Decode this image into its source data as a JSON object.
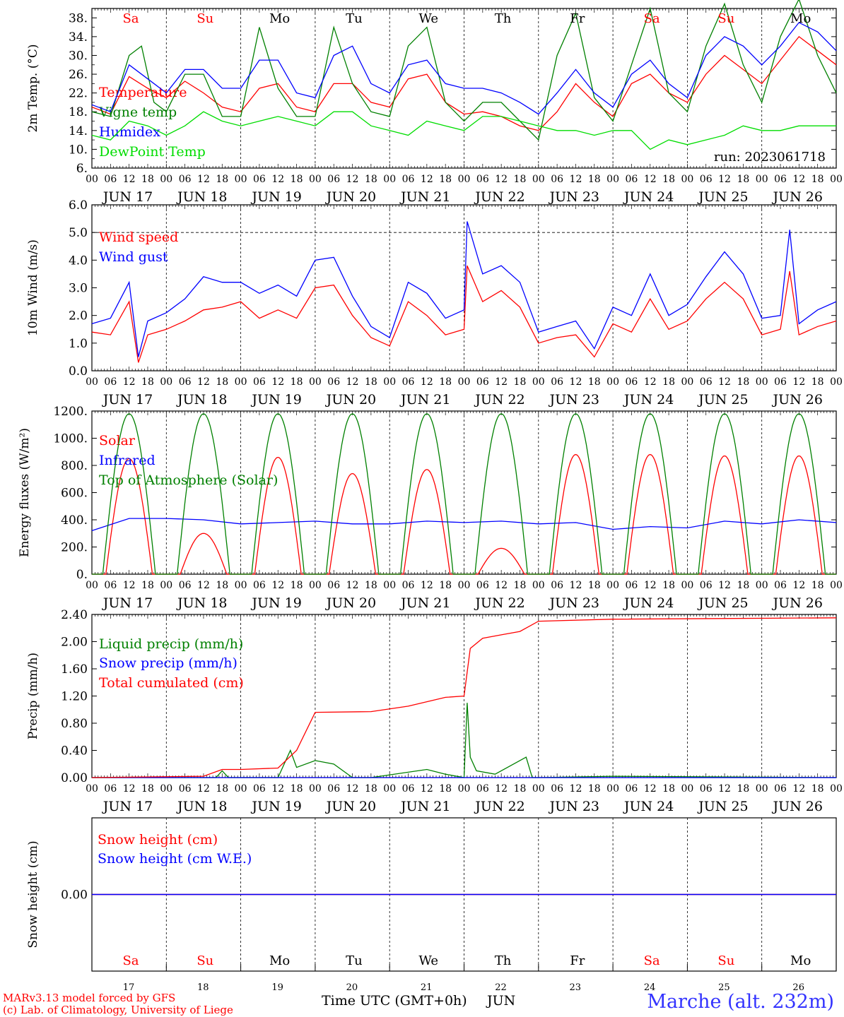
{
  "days": [
    {
      "abbr": "Sa",
      "weekend": true,
      "label": "JUN 17",
      "num": "17"
    },
    {
      "abbr": "Su",
      "weekend": true,
      "label": "JUN 18",
      "num": "18"
    },
    {
      "abbr": "Mo",
      "weekend": false,
      "label": "JUN 19",
      "num": "19"
    },
    {
      "abbr": "Tu",
      "weekend": false,
      "label": "JUN 20",
      "num": "20"
    },
    {
      "abbr": "We",
      "weekend": false,
      "label": "JUN 21",
      "num": "21"
    },
    {
      "abbr": "Th",
      "weekend": false,
      "label": "JUN 22",
      "num": "22"
    },
    {
      "abbr": "Fr",
      "weekend": false,
      "label": "JUN 23",
      "num": "23"
    },
    {
      "abbr": "Sa",
      "weekend": true,
      "label": "JUN 24",
      "num": "24"
    },
    {
      "abbr": "Su",
      "weekend": true,
      "label": "JUN 25",
      "num": "25"
    },
    {
      "abbr": "Mo",
      "weekend": false,
      "label": "JUN 26",
      "num": "26"
    }
  ],
  "hour_ticks": [
    "00",
    "06",
    "12",
    "18"
  ],
  "colors": {
    "red": "#ff0000",
    "green": "#008000",
    "blue": "#0000ff",
    "lightgreen": "#00dd00",
    "purple": "#800080",
    "title": "#3333ff"
  },
  "chart_data": [
    {
      "type": "line",
      "ylabel": "2m Temp. (°C)",
      "ylim": [
        6,
        40
      ],
      "yticks": [
        "6.",
        "10.",
        "14.",
        "18.",
        "22.",
        "26.",
        "30.",
        "34.",
        "38."
      ],
      "annotation": "run: 2023061718",
      "series": [
        {
          "name": "Temperature",
          "color": "red",
          "x": [
            0,
            6,
            12,
            18,
            24,
            30,
            36,
            42,
            48,
            54,
            60,
            66,
            72,
            78,
            84,
            90,
            96,
            102,
            108,
            114,
            120,
            126,
            132,
            138,
            144,
            150,
            156,
            162,
            168,
            174,
            180,
            186,
            192,
            198,
            204,
            210,
            216,
            222,
            228,
            234,
            240
          ],
          "values": [
            19,
            17.5,
            25.5,
            23,
            21,
            24.5,
            22,
            19,
            18,
            23,
            24,
            19,
            18,
            24,
            24,
            20,
            19,
            25,
            26,
            20,
            17.5,
            18,
            17,
            15,
            14,
            18,
            24,
            20,
            17,
            24,
            26,
            22,
            20,
            26,
            30,
            27,
            24,
            29,
            34,
            31,
            28
          ]
        },
        {
          "name": "Vigne temp",
          "color": "green",
          "x": [
            0,
            6,
            12,
            16,
            20,
            24,
            30,
            36,
            42,
            48,
            54,
            60,
            66,
            72,
            78,
            84,
            90,
            96,
            102,
            108,
            114,
            120,
            126,
            132,
            138,
            144,
            150,
            156,
            162,
            168,
            174,
            180,
            186,
            192,
            198,
            204,
            210,
            216,
            222,
            228,
            234,
            240
          ],
          "values": [
            18,
            17,
            30,
            32,
            20,
            18,
            26,
            26,
            17,
            17,
            36,
            23,
            17,
            17,
            36,
            24,
            18,
            17,
            32,
            36,
            20,
            16,
            20,
            20,
            16,
            12,
            30,
            39,
            21,
            16,
            28,
            40,
            22,
            18,
            32,
            41,
            28,
            20,
            34,
            42,
            30,
            22
          ]
        },
        {
          "name": "Humidex",
          "color": "blue",
          "x": [
            0,
            6,
            12,
            18,
            24,
            30,
            36,
            42,
            48,
            54,
            60,
            66,
            72,
            78,
            84,
            90,
            96,
            102,
            108,
            114,
            120,
            126,
            132,
            138,
            144,
            150,
            156,
            162,
            168,
            174,
            180,
            186,
            192,
            198,
            204,
            210,
            216,
            222,
            228,
            234,
            240
          ],
          "values": [
            19.5,
            18,
            28,
            25,
            22,
            27,
            27,
            23,
            23,
            29,
            29,
            22,
            21,
            30,
            32,
            24,
            22,
            28,
            29,
            24,
            23,
            23,
            22,
            20,
            17.5,
            22,
            27,
            22,
            19,
            26,
            29,
            24,
            21,
            30,
            34,
            32,
            28,
            32,
            37,
            35,
            31
          ]
        },
        {
          "name": "DewPoint Temp",
          "color": "lightgreen",
          "x": [
            0,
            6,
            12,
            18,
            24,
            30,
            36,
            42,
            48,
            54,
            60,
            66,
            72,
            78,
            84,
            90,
            96,
            102,
            108,
            114,
            120,
            126,
            132,
            138,
            144,
            150,
            156,
            162,
            168,
            174,
            180,
            186,
            192,
            198,
            204,
            210,
            216,
            222,
            228,
            234,
            240
          ],
          "values": [
            13,
            12,
            16,
            15,
            13,
            15,
            18,
            16,
            15,
            16,
            17,
            16,
            15,
            18,
            18,
            15,
            14,
            13,
            16,
            15,
            14,
            17,
            17,
            16,
            15,
            14,
            14,
            13,
            14,
            14,
            10,
            12,
            11,
            12,
            13,
            15,
            14,
            14,
            15,
            15,
            15
          ]
        }
      ]
    },
    {
      "type": "line",
      "ylabel": "10m Wind (m/s)",
      "ylim": [
        0,
        6
      ],
      "yticks": [
        "0.0",
        "1.0",
        "2.0",
        "3.0",
        "4.0",
        "5.0",
        "6.0"
      ],
      "reference_line": 5.0,
      "series": [
        {
          "name": "Wind speed",
          "color": "red",
          "x": [
            0,
            6,
            12,
            15,
            18,
            24,
            30,
            36,
            42,
            48,
            54,
            60,
            66,
            72,
            78,
            84,
            90,
            96,
            102,
            108,
            114,
            120,
            121,
            126,
            132,
            138,
            144,
            150,
            156,
            162,
            168,
            174,
            180,
            186,
            192,
            198,
            204,
            210,
            216,
            222,
            225,
            228,
            234,
            240
          ],
          "values": [
            1.4,
            1.3,
            2.5,
            0.3,
            1.3,
            1.5,
            1.8,
            2.2,
            2.3,
            2.5,
            1.9,
            2.2,
            1.9,
            3.0,
            3.1,
            2.0,
            1.2,
            0.9,
            2.5,
            2.0,
            1.3,
            1.5,
            3.8,
            2.5,
            2.9,
            2.3,
            1.0,
            1.2,
            1.3,
            0.5,
            1.7,
            1.4,
            2.6,
            1.5,
            1.8,
            2.6,
            3.2,
            2.6,
            1.3,
            1.5,
            3.6,
            1.3,
            1.6,
            1.8
          ]
        },
        {
          "name": "Wind gust",
          "color": "blue",
          "x": [
            0,
            6,
            12,
            15,
            18,
            24,
            30,
            36,
            42,
            48,
            54,
            60,
            66,
            72,
            78,
            84,
            90,
            96,
            102,
            108,
            114,
            120,
            121,
            126,
            132,
            138,
            144,
            150,
            156,
            162,
            168,
            174,
            180,
            186,
            192,
            198,
            204,
            210,
            216,
            222,
            225,
            228,
            234,
            240
          ],
          "values": [
            1.7,
            1.9,
            3.2,
            0.5,
            1.8,
            2.1,
            2.6,
            3.4,
            3.2,
            3.2,
            2.8,
            3.1,
            2.7,
            4.0,
            4.1,
            2.7,
            1.6,
            1.2,
            3.2,
            2.8,
            1.9,
            2.2,
            5.4,
            3.5,
            3.8,
            3.2,
            1.4,
            1.6,
            1.8,
            0.8,
            2.3,
            2.0,
            3.5,
            2.0,
            2.4,
            3.4,
            4.3,
            3.5,
            1.9,
            2.0,
            5.1,
            1.7,
            2.2,
            2.5
          ]
        }
      ]
    },
    {
      "type": "line",
      "ylabel": "Energy fluxes (W/m²)",
      "ylim": [
        0,
        1200
      ],
      "yticks": [
        "0.",
        "200.",
        "400.",
        "600.",
        "800.",
        "1000.",
        "1200."
      ],
      "series": [
        {
          "name": "Solar",
          "color": "red",
          "daily_peak": [
            850,
            300,
            860,
            740,
            770,
            190,
            880,
            880,
            870,
            870
          ]
        },
        {
          "name": "Infrared",
          "color": "blue",
          "x": [
            0,
            12,
            24,
            36,
            48,
            60,
            72,
            84,
            96,
            108,
            120,
            132,
            144,
            156,
            168,
            180,
            192,
            204,
            216,
            228,
            240
          ],
          "values": [
            320,
            410,
            410,
            400,
            370,
            380,
            390,
            370,
            370,
            390,
            380,
            390,
            370,
            380,
            330,
            350,
            340,
            390,
            370,
            400,
            380
          ]
        },
        {
          "name": "Top of Atmosphere (Solar)",
          "color": "green",
          "daily_peak": [
            1180,
            1180,
            1180,
            1180,
            1180,
            1180,
            1180,
            1180,
            1180,
            1180
          ]
        }
      ]
    },
    {
      "type": "line",
      "ylabel": "Precip (mm/h)",
      "ylim": [
        0,
        2.4
      ],
      "yticks": [
        "0.00",
        "0.40",
        "0.80",
        "1.20",
        "1.60",
        "2.00",
        "2.40"
      ],
      "series": [
        {
          "name": "Liquid precip (mm/h)",
          "color": "green",
          "x": [
            0,
            40,
            42,
            44,
            60,
            64,
            66,
            72,
            78,
            84,
            90,
            108,
            114,
            120,
            121,
            122,
            124,
            130,
            140,
            142,
            144,
            168,
            240
          ],
          "values": [
            0,
            0,
            0.1,
            0,
            0,
            0.4,
            0.15,
            0.25,
            0.2,
            0,
            0,
            0.12,
            0.05,
            0,
            1.1,
            0.3,
            0.1,
            0.05,
            0.3,
            0,
            0,
            0.02,
            0
          ]
        },
        {
          "name": "Snow precip (mm/h)",
          "color": "blue",
          "x": [
            0,
            240
          ],
          "values": [
            0,
            0
          ]
        },
        {
          "name": "Total cumulated (cm)",
          "color": "red",
          "x": [
            0,
            36,
            42,
            48,
            60,
            66,
            72,
            90,
            102,
            114,
            120,
            122,
            126,
            132,
            138,
            144,
            168,
            240
          ],
          "values": [
            0,
            0.02,
            0.12,
            0.12,
            0.14,
            0.4,
            0.96,
            0.97,
            1.05,
            1.18,
            1.2,
            1.9,
            2.05,
            2.1,
            2.15,
            2.3,
            2.33,
            2.35
          ]
        }
      ]
    },
    {
      "type": "line",
      "ylabel": "Snow height (cm)",
      "ylim": [
        -2,
        2
      ],
      "yticks": [
        "0.00"
      ],
      "series": [
        {
          "name": "Snow height (cm)",
          "color": "red",
          "x": [
            0,
            240
          ],
          "values": [
            0,
            0
          ]
        },
        {
          "name": "Snow height (cm W.E.)",
          "color": "blue",
          "x": [
            0,
            240
          ],
          "values": [
            0,
            0
          ]
        }
      ]
    }
  ],
  "footer": {
    "xlabel": "Time UTC (GMT+0h)",
    "month": "JUN",
    "model": "MARv3.13 model forced by GFS",
    "lab": "(c) Lab. of Climatology, University of Liege",
    "station": "Marche (alt. 232m)"
  }
}
